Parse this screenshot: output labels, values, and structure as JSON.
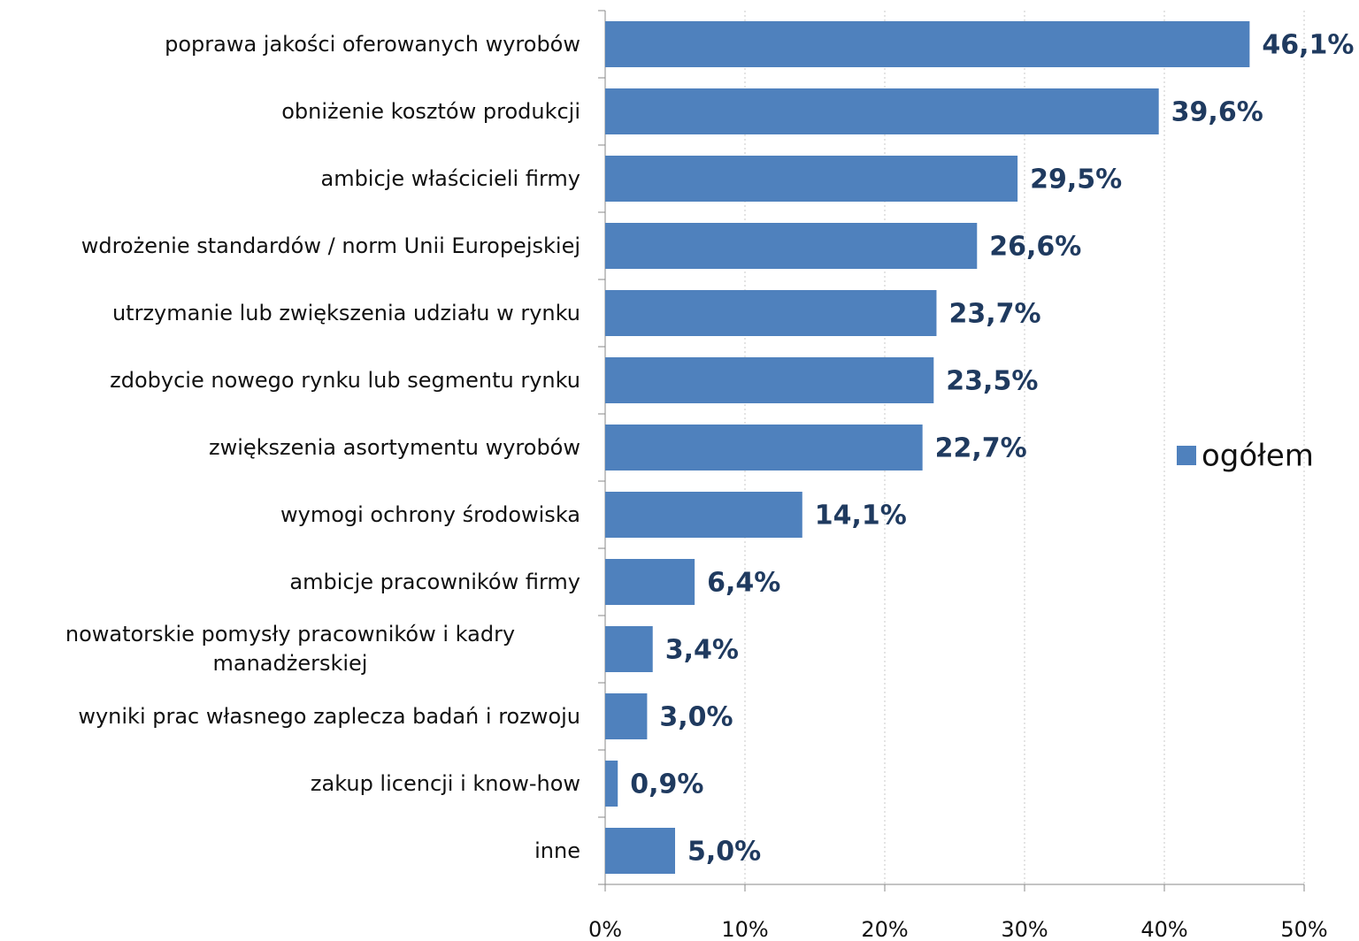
{
  "chart_data": {
    "type": "bar",
    "orientation": "horizontal",
    "categories": [
      "poprawa jakości oferowanych wyrobów",
      "obniżenie kosztów produkcji",
      "ambicje właścicieli firmy",
      "wdrożenie standardów / norm Unii Europejskiej",
      "utrzymanie lub zwiększenia udziału w rynku",
      "zdobycie nowego rynku lub segmentu rynku",
      "zwiększenia asortymentu wyrobów",
      "wymogi ochrony środowiska",
      "ambicje pracowników firmy",
      "nowatorskie pomysły pracowników i kadry manadżerskiej",
      "wyniki prac własnego zaplecza badań i rozwoju",
      "zakup licencji i know-how",
      "inne"
    ],
    "series": [
      {
        "name": "ogółem",
        "color": "#4f81bd",
        "values": [
          46.1,
          39.6,
          29.5,
          26.6,
          23.7,
          23.5,
          22.7,
          14.1,
          6.4,
          3.4,
          3.0,
          0.9,
          5.0
        ],
        "value_labels": [
          "46,1%",
          "39,6%",
          "29,5%",
          "26,6%",
          "23,7%",
          "23,5%",
          "22,7%",
          "14,1%",
          "6,4%",
          "3,4%",
          "3,0%",
          "0,9%",
          "5,0%"
        ]
      }
    ],
    "xlim": [
      0,
      50
    ],
    "xticks": [
      {
        "value": 0,
        "label": "0%"
      },
      {
        "value": 10,
        "label": "10%"
      },
      {
        "value": 20,
        "label": "20%"
      },
      {
        "value": 30,
        "label": "30%"
      },
      {
        "value": 40,
        "label": "40%"
      },
      {
        "value": 50,
        "label": "50%"
      }
    ],
    "grid": true,
    "legend": "right"
  }
}
